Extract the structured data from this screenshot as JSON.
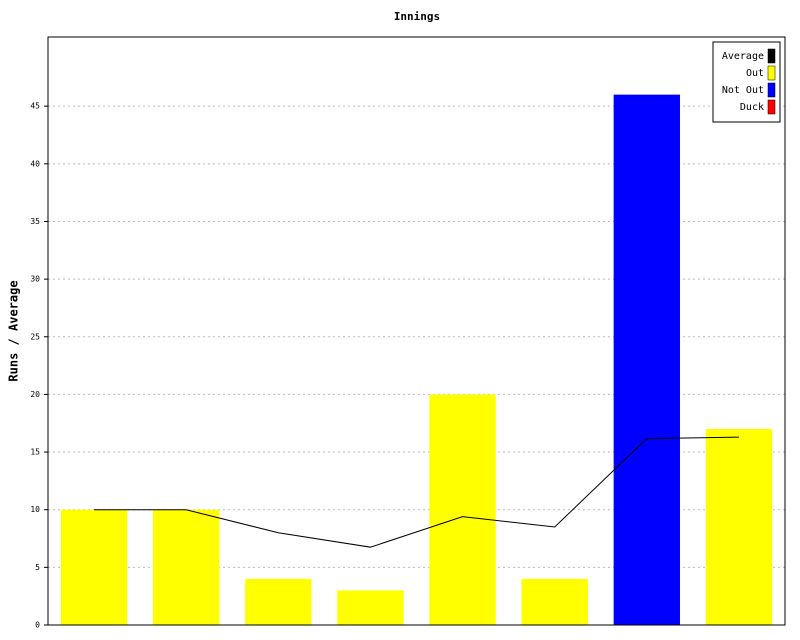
{
  "chart_data": {
    "type": "bar",
    "title": "Innings",
    "y_label": "Runs / Average",
    "categories": [
      null,
      null,
      null,
      null,
      null,
      null,
      null,
      null
    ],
    "series": [
      {
        "name": "Average",
        "type": "line",
        "color": "#000000",
        "values": [
          10,
          10,
          8,
          6.75,
          9.4,
          8.5,
          16.17,
          16.29
        ]
      },
      {
        "name": "Out",
        "type": "bar",
        "color": "#ffff00",
        "values": [
          10,
          10,
          4,
          3,
          20,
          4,
          null,
          17
        ]
      },
      {
        "name": "Not Out",
        "type": "bar",
        "color": "#0000ff",
        "values": [
          null,
          null,
          null,
          null,
          null,
          null,
          46,
          null
        ]
      },
      {
        "name": "Duck",
        "type": "bar",
        "color": "#ff0000",
        "values": [
          null,
          null,
          null,
          null,
          null,
          null,
          null,
          null
        ]
      }
    ],
    "ylim": [
      0,
      51
    ],
    "yticks": [
      0,
      5,
      10,
      15,
      20,
      25,
      30,
      35,
      40,
      45
    ],
    "grid": true,
    "legend": "upper right"
  }
}
